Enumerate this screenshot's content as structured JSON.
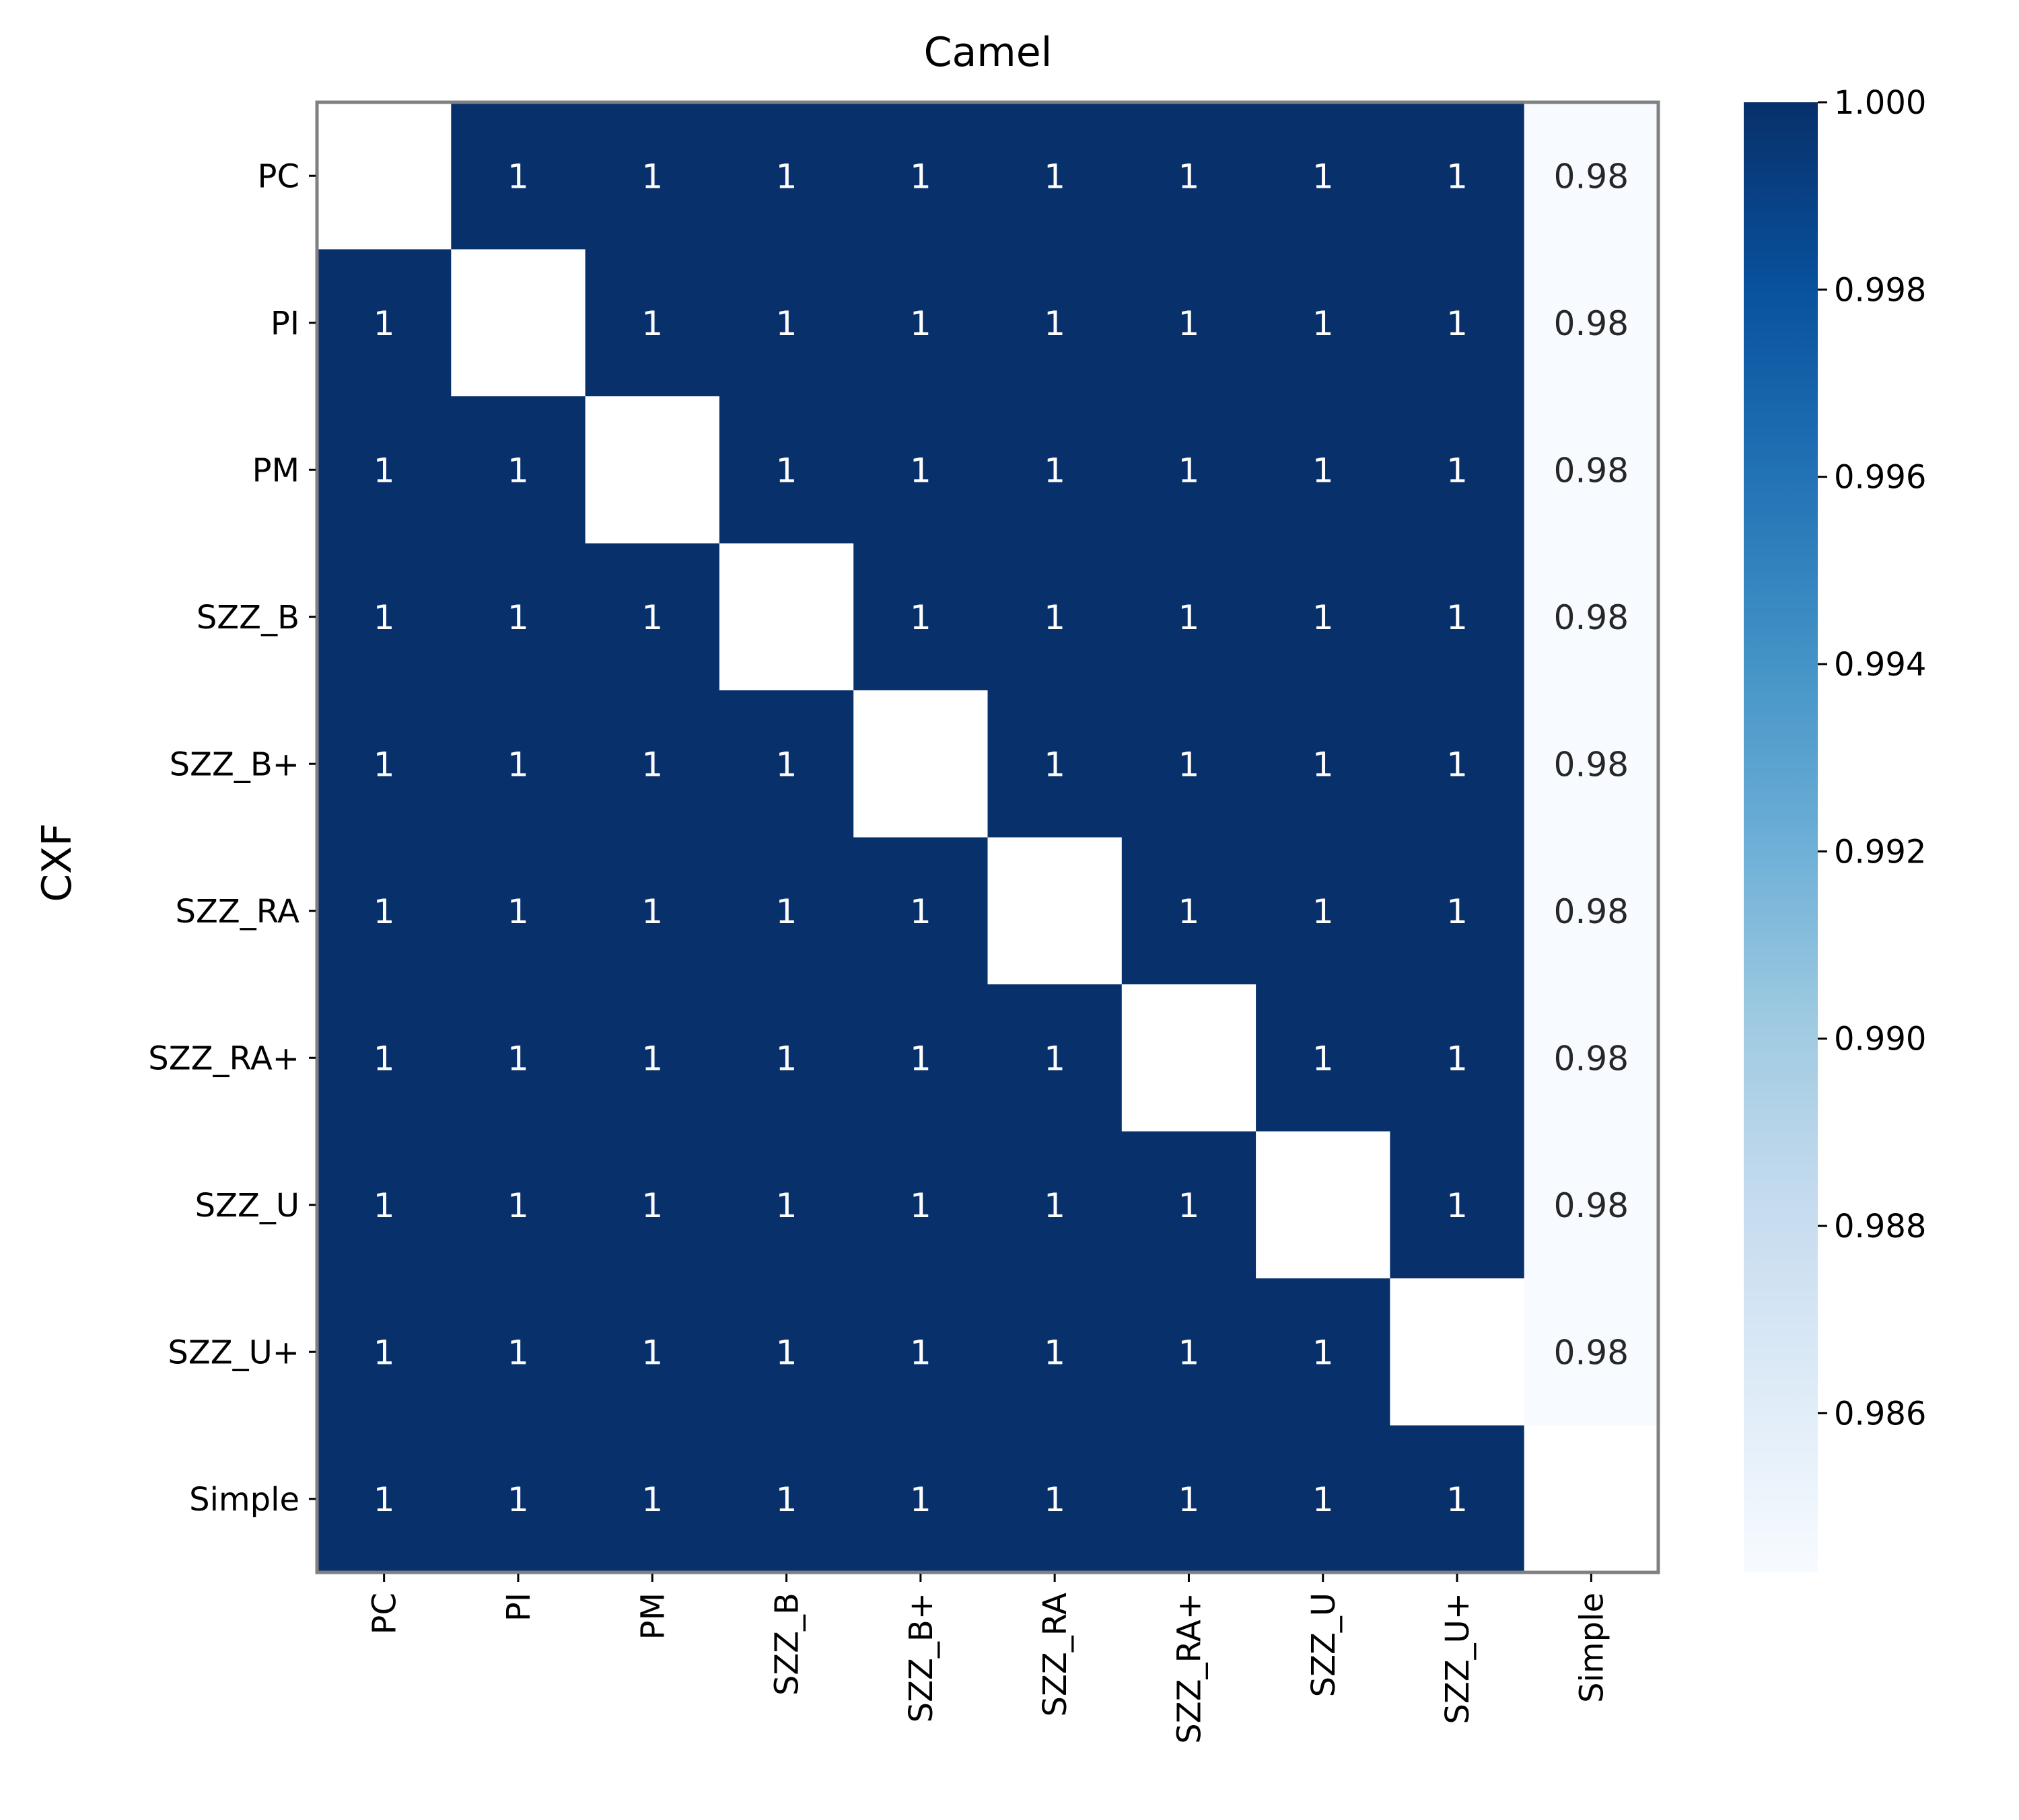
{
  "chart_data": {
    "type": "heatmap",
    "title": "Camel",
    "ylabel": "CXF",
    "xlabel": "",
    "row_labels": [
      "PC",
      "PI",
      "PM",
      "SZZ_B",
      "SZZ_B+",
      "SZZ_RA",
      "SZZ_RA+",
      "SZZ_U",
      "SZZ_U+",
      "Simple"
    ],
    "col_labels": [
      "PC",
      "PI",
      "PM",
      "SZZ_B",
      "SZZ_B+",
      "SZZ_RA",
      "SZZ_RA+",
      "SZZ_U",
      "SZZ_U+",
      "Simple"
    ],
    "values": [
      [
        null,
        1,
        1,
        1,
        1,
        1,
        1,
        1,
        1,
        0.9843
      ],
      [
        1,
        null,
        1,
        1,
        1,
        1,
        1,
        1,
        1,
        0.9843
      ],
      [
        1,
        1,
        null,
        1,
        1,
        1,
        1,
        1,
        1,
        0.9843
      ],
      [
        1,
        1,
        1,
        null,
        1,
        1,
        1,
        1,
        1,
        0.9843
      ],
      [
        1,
        1,
        1,
        1,
        null,
        1,
        1,
        1,
        1,
        0.9843
      ],
      [
        1,
        1,
        1,
        1,
        1,
        null,
        1,
        1,
        1,
        0.9843
      ],
      [
        1,
        1,
        1,
        1,
        1,
        1,
        null,
        1,
        1,
        0.9843
      ],
      [
        1,
        1,
        1,
        1,
        1,
        1,
        1,
        null,
        1,
        0.9843
      ],
      [
        1,
        1,
        1,
        1,
        1,
        1,
        1,
        1,
        null,
        0.9843
      ],
      [
        1,
        1,
        1,
        1,
        1,
        1,
        1,
        1,
        1,
        null
      ]
    ],
    "annotations": [
      [
        "",
        "1",
        "1",
        "1",
        "1",
        "1",
        "1",
        "1",
        "1",
        "0.98"
      ],
      [
        "1",
        "",
        "1",
        "1",
        "1",
        "1",
        "1",
        "1",
        "1",
        "0.98"
      ],
      [
        "1",
        "1",
        "",
        "1",
        "1",
        "1",
        "1",
        "1",
        "1",
        "0.98"
      ],
      [
        "1",
        "1",
        "1",
        "",
        "1",
        "1",
        "1",
        "1",
        "1",
        "0.98"
      ],
      [
        "1",
        "1",
        "1",
        "1",
        "",
        "1",
        "1",
        "1",
        "1",
        "0.98"
      ],
      [
        "1",
        "1",
        "1",
        "1",
        "1",
        "",
        "1",
        "1",
        "1",
        "0.98"
      ],
      [
        "1",
        "1",
        "1",
        "1",
        "1",
        "1",
        "",
        "1",
        "1",
        "0.98"
      ],
      [
        "1",
        "1",
        "1",
        "1",
        "1",
        "1",
        "1",
        "",
        "1",
        "0.98"
      ],
      [
        "1",
        "1",
        "1",
        "1",
        "1",
        "1",
        "1",
        "1",
        "",
        "0.98"
      ],
      [
        "1",
        "1",
        "1",
        "1",
        "1",
        "1",
        "1",
        "1",
        "1",
        ""
      ]
    ],
    "colorbar": {
      "min": 0.9843,
      "max": 1.0,
      "ticks": [
        1.0,
        0.998,
        0.996,
        0.994,
        0.992,
        0.99,
        0.988,
        0.986
      ],
      "tick_labels": [
        "1.000",
        "0.998",
        "0.996",
        "0.994",
        "0.992",
        "0.990",
        "0.988",
        "0.986"
      ],
      "colormap": "Blues",
      "color_low": "#f7fbff",
      "color_high": "#08306b"
    },
    "text_color_dark_cells": "#ffffff",
    "text_color_light_cells": "#262626",
    "frame_color": "#808080",
    "grid": false
  }
}
